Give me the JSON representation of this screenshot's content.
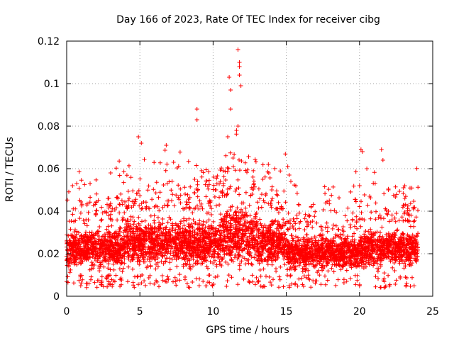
{
  "chart_data": {
    "type": "scatter",
    "title": "Day 166 of 2023, Rate Of TEC Index for receiver cibg",
    "xlabel": "GPS time / hours",
    "ylabel": "ROTI / TECUs",
    "xlim": [
      0,
      25
    ],
    "ylim": [
      0,
      0.12
    ],
    "x_ticks": [
      0,
      5,
      10,
      15,
      20,
      25
    ],
    "x_tick_labels": [
      "0",
      "5",
      "10",
      "15",
      "20",
      "25"
    ],
    "y_ticks": [
      0,
      0.02,
      0.04,
      0.06,
      0.08,
      0.1,
      0.12
    ],
    "y_tick_labels": [
      "0",
      "0.02",
      "0.04",
      "0.06",
      "0.08",
      "0.1",
      "0.12"
    ],
    "grid": true,
    "marker": "+",
    "color": "#ff0000",
    "series": [
      {
        "name": "ROTI",
        "x_range_hours": [
          0,
          24
        ],
        "typical_band": [
          0.008,
          0.035
        ],
        "outliers": [
          [
            0.4,
            0.052
          ],
          [
            1.6,
            0.053
          ],
          [
            3.0,
            0.058
          ],
          [
            4.9,
            0.075
          ],
          [
            5.1,
            0.072
          ],
          [
            6.8,
            0.071
          ],
          [
            7.3,
            0.063
          ],
          [
            8.9,
            0.088
          ],
          [
            8.9,
            0.083
          ],
          [
            10.2,
            0.05
          ],
          [
            11.1,
            0.103
          ],
          [
            11.2,
            0.097
          ],
          [
            11.2,
            0.088
          ],
          [
            11.7,
            0.116
          ],
          [
            11.8,
            0.11
          ],
          [
            11.8,
            0.108
          ],
          [
            11.8,
            0.104
          ],
          [
            11.9,
            0.099
          ],
          [
            11.7,
            0.08
          ],
          [
            11.6,
            0.078
          ],
          [
            11.0,
            0.075
          ],
          [
            13.4,
            0.055
          ],
          [
            13.8,
            0.058
          ],
          [
            15.1,
            0.061
          ],
          [
            15.2,
            0.057
          ],
          [
            20.0,
            0.052
          ],
          [
            20.1,
            0.069
          ],
          [
            20.2,
            0.068
          ],
          [
            20.5,
            0.06
          ],
          [
            21.5,
            0.069
          ],
          [
            21.6,
            0.064
          ],
          [
            23.0,
            0.051
          ],
          [
            23.4,
            0.038
          ]
        ]
      }
    ]
  }
}
